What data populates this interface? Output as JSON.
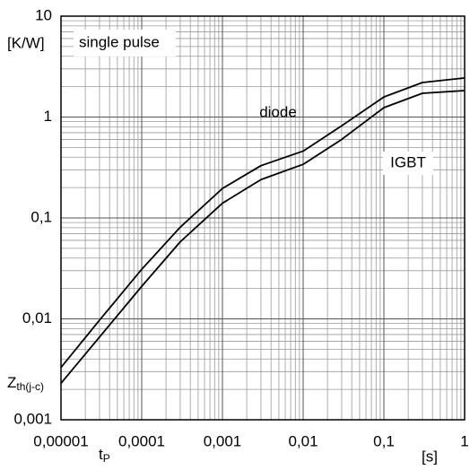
{
  "chart_data": {
    "type": "line",
    "annotation": "single pulse",
    "xlabel": {
      "main": "t",
      "sub": "P"
    },
    "xunit": "[s]",
    "ylabel": {
      "main": "Z",
      "sub": "th(j-c)"
    },
    "yunit": "[K/W]",
    "log_x": true,
    "log_y": true,
    "grid": true,
    "x": [
      1e-05,
      3e-05,
      0.0001,
      0.0003,
      0.001,
      0.003,
      0.01,
      0.03,
      0.1,
      0.3,
      1
    ],
    "series": [
      {
        "name": "diode",
        "color": "#000000",
        "values": [
          0.0033,
          0.0097,
          0.031,
          0.081,
          0.196,
          0.33,
          0.46,
          0.82,
          1.58,
          2.2,
          2.44
        ]
      },
      {
        "name": "IGBT",
        "color": "#000000",
        "values": [
          0.0023,
          0.0066,
          0.021,
          0.058,
          0.14,
          0.24,
          0.34,
          0.6,
          1.24,
          1.72,
          1.83
        ]
      }
    ],
    "xlim": [
      1e-05,
      1
    ],
    "xticks": [
      {
        "value": 1e-05,
        "label": "0,00001"
      },
      {
        "value": 0.0001,
        "label": "0,0001"
      },
      {
        "value": 0.001,
        "label": "0,001"
      },
      {
        "value": 0.01,
        "label": "0,01"
      },
      {
        "value": 0.1,
        "label": "0,1"
      },
      1
    ],
    "ylim": [
      0.001,
      10
    ],
    "yticks": [
      {
        "value": 0.001,
        "label": "0,001"
      },
      {
        "value": 0.01,
        "label": "0,01"
      },
      {
        "value": 0.1,
        "label": "0,1"
      },
      1,
      10
    ]
  }
}
